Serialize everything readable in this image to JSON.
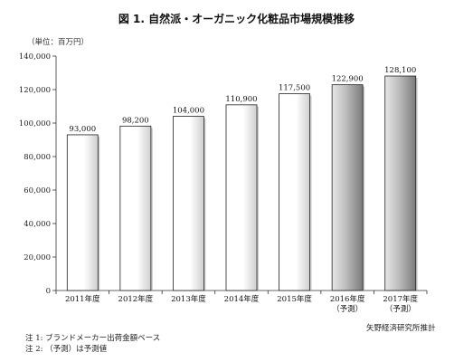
{
  "chart_data": {
    "type": "bar",
    "title": "図 1.  自然派・オーガニック化粧品市場規模推移",
    "unit": "（単位：百万円）",
    "categories": [
      [
        "2011年度",
        ""
      ],
      [
        "2012年度",
        ""
      ],
      [
        "2013年度",
        ""
      ],
      [
        "2014年度",
        ""
      ],
      [
        "2015年度",
        ""
      ],
      [
        "2016年度",
        "（予測）"
      ],
      [
        "2017年度",
        "（予測）"
      ]
    ],
    "values": [
      93000,
      98200,
      104000,
      110900,
      117500,
      122900,
      128100
    ],
    "value_labels": [
      "93,000",
      "98,200",
      "104,000",
      "110,900",
      "117,500",
      "122,900",
      "128,100"
    ],
    "forecast": [
      false,
      false,
      false,
      false,
      false,
      true,
      true
    ],
    "ylim": [
      0,
      140000
    ],
    "yticks": [
      0,
      20000,
      40000,
      60000,
      80000,
      100000,
      120000,
      140000
    ],
    "ytick_labels": [
      "0",
      "20,000",
      "40,000",
      "60,000",
      "80,000",
      "100,000",
      "120,000",
      "140,000"
    ],
    "grid": false,
    "colors": {
      "actual": "#ffffff",
      "forecast": "#b8b8b8",
      "edge": "#222222"
    },
    "source": "矢野経済研究所推計",
    "notes": [
      "注 1:  ブランドメーカー出荷金額ベース",
      "注 2:  （予測）は予測値"
    ]
  }
}
